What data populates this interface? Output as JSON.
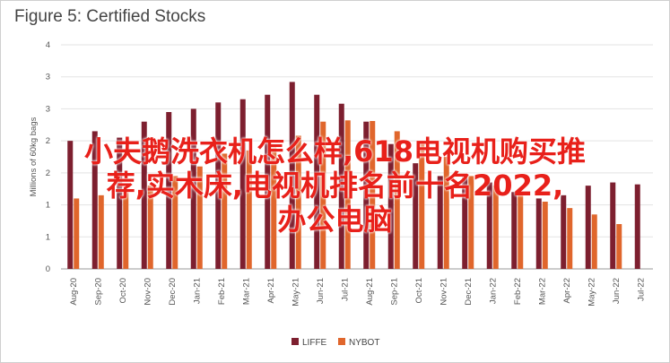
{
  "chart_data": {
    "type": "bar",
    "title": "Figure 5: Certified Stocks",
    "ylabel": "Millions of 60kg bags",
    "ylim": [
      0,
      3.5
    ],
    "yticks": [
      "0",
      "1",
      "1",
      "2",
      "2",
      "3",
      "3",
      "4"
    ],
    "categories": [
      "Aug-20",
      "Sep-20",
      "Oct-20",
      "Nov-20",
      "Dec-20",
      "Jan-21",
      "Feb-21",
      "Mar-21",
      "Apr-21",
      "May-21",
      "Jun-21",
      "Jul-21",
      "Aug-21",
      "Sep-21",
      "Oct-21",
      "Nov-21",
      "Dec-21",
      "Jan-22",
      "Feb-22",
      "Mar-22",
      "Apr-22",
      "May-22",
      "Jun-22",
      "Jul-22"
    ],
    "series": [
      {
        "name": "LIFFE",
        "color": "#7d1f2f",
        "values": [
          2.0,
          2.15,
          2.05,
          2.3,
          2.45,
          2.5,
          2.6,
          2.65,
          2.72,
          2.92,
          2.72,
          2.58,
          2.3,
          1.95,
          1.65,
          1.45,
          1.45,
          1.35,
          1.2,
          1.1,
          1.15,
          1.3,
          1.35,
          1.32
        ]
      },
      {
        "name": "NYBOT",
        "color": "#e0662c",
        "values": [
          1.1,
          1.15,
          1.25,
          1.3,
          1.45,
          1.6,
          1.8,
          1.85,
          1.9,
          2.08,
          2.3,
          2.32,
          2.31,
          2.15,
          1.95,
          1.75,
          1.45,
          1.3,
          1.2,
          1.05,
          0.95,
          0.85,
          0.7,
          null
        ]
      }
    ],
    "legend": "bottom-center",
    "grid": true
  },
  "overlay": {
    "lines": [
      "小夫鹅洗衣机怎么样,618电视机购买推",
      "荐,实木床,电视机排名前十名2022,",
      "办公电脑"
    ]
  }
}
